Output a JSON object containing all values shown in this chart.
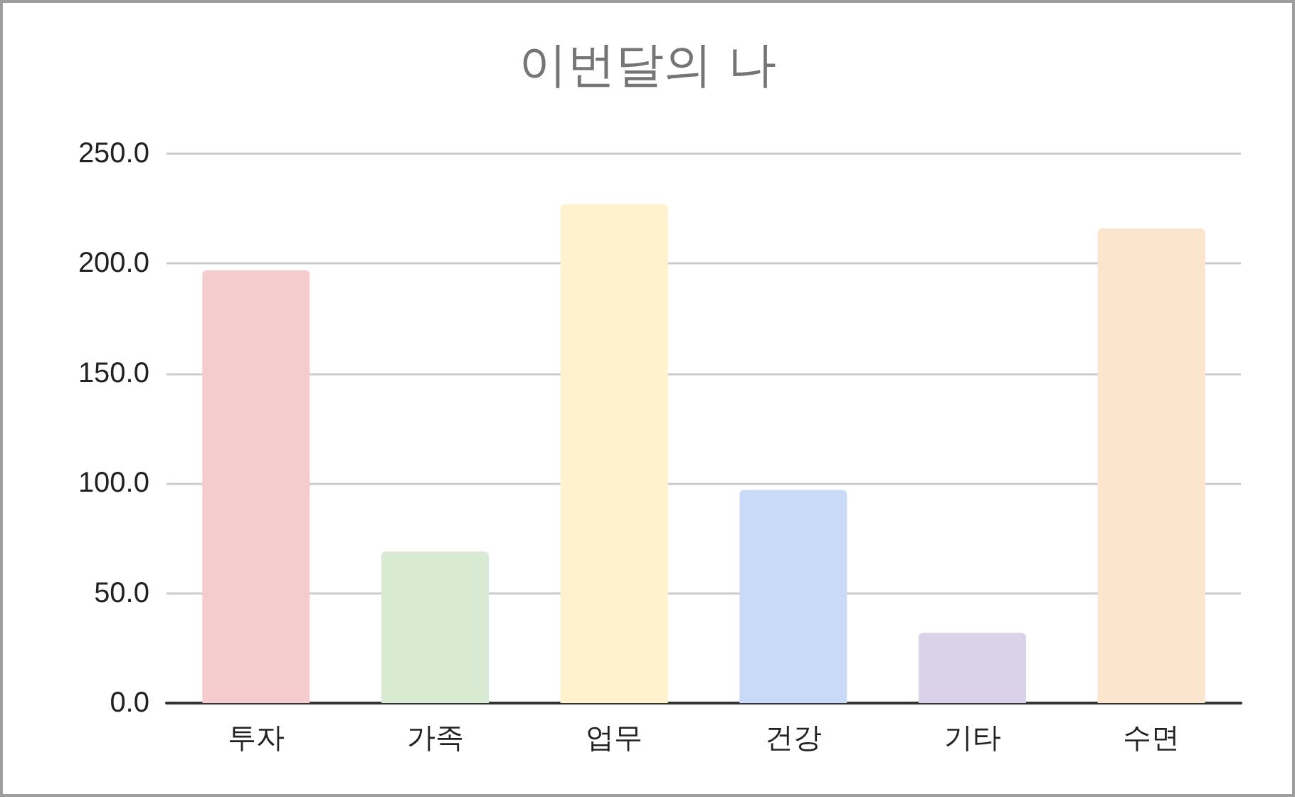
{
  "chart_data": {
    "type": "bar",
    "title": "이번달의 나",
    "categories": [
      "투자",
      "가족",
      "업무",
      "건강",
      "기타",
      "수면"
    ],
    "values": [
      197,
      69,
      227,
      97,
      32,
      216
    ],
    "colors": [
      "#f4cccc",
      "#d9ead3",
      "#fff2cc",
      "#c9daf8",
      "#d9d2e9",
      "#fce5cd"
    ],
    "ylim": [
      0,
      250
    ],
    "yticks": [
      {
        "value": 0,
        "label": "0.0"
      },
      {
        "value": 50,
        "label": "50.0"
      },
      {
        "value": 100,
        "label": "100.0"
      },
      {
        "value": 150,
        "label": "150.0"
      },
      {
        "value": 200,
        "label": "200.0"
      },
      {
        "value": 250,
        "label": "250.0"
      }
    ],
    "grid": "y"
  }
}
